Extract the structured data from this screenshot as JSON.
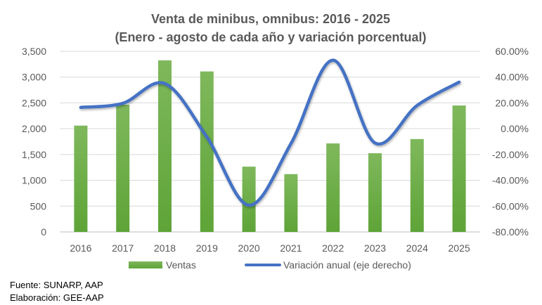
{
  "chart_data": {
    "type": "bar",
    "title": "Venta de minibus, omnibus: 2016 - 2025",
    "subtitle": "(Enero - agosto de cada año y variación porcentual)",
    "categories": [
      "2016",
      "2017",
      "2018",
      "2019",
      "2020",
      "2021",
      "2022",
      "2023",
      "2024",
      "2025"
    ],
    "series": [
      {
        "name": "Ventas",
        "type": "bar",
        "axis": "left",
        "color": "#70ad47",
        "values": [
          2060,
          2465,
          3325,
          3110,
          1265,
          1120,
          1715,
          1525,
          1800,
          2450
        ]
      },
      {
        "name": "Variación anual (eje derecho)",
        "type": "line",
        "axis": "right",
        "color": "#4472c4",
        "values": [
          16.5,
          19.7,
          35.0,
          -6.5,
          -59.3,
          -11.5,
          53.1,
          -11.1,
          18.0,
          36.1
        ]
      }
    ],
    "left_axis": {
      "ylim": [
        0,
        3500
      ],
      "ticks": [
        "0",
        "500",
        "1,000",
        "1,500",
        "2,000",
        "2,500",
        "3,000",
        "3,500"
      ]
    },
    "right_axis": {
      "ylim": [
        -80,
        60
      ],
      "ticks": [
        "-80.00%",
        "-60.00%",
        "-40.00%",
        "-20.00%",
        "0.00%",
        "20.00%",
        "40.00%",
        "60.00%"
      ]
    },
    "grid": true,
    "legend": "bottom"
  },
  "footer": {
    "source": "Fuente: SUNARP, AAP",
    "credit": "Elaboración: GEE-AAP"
  }
}
